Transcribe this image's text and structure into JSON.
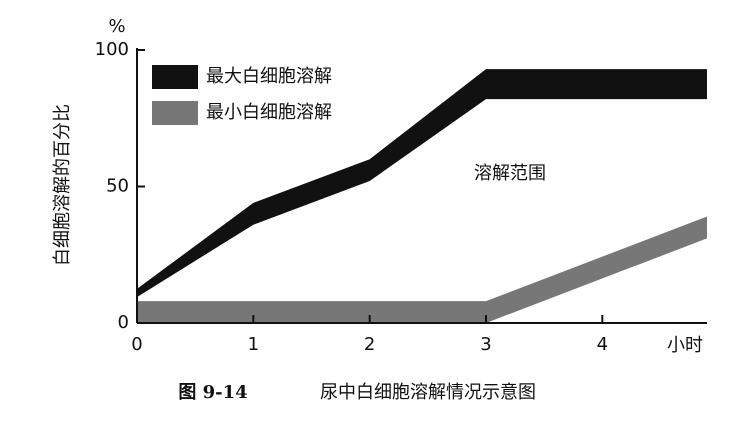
{
  "chart_data": {
    "type": "band",
    "y_label": "白细胞溶解的百分比",
    "y_unit": "%",
    "x_unit": "小时",
    "annotation": "溶解范围",
    "caption_number": "图 9-14",
    "caption": "尿中白细胞溶解情况示意图",
    "xlim": [
      0,
      4.9
    ],
    "xticks": [
      0,
      1,
      2,
      3,
      4
    ],
    "ylim": [
      0,
      100
    ],
    "yticks": [
      0,
      50,
      100
    ],
    "series": [
      {
        "name": "最大白细胞溶解",
        "color": "#111111",
        "x": [
          0,
          1,
          2,
          3,
          4.9
        ],
        "high": [
          12.5,
          44,
          60,
          93,
          93
        ],
        "low": [
          9.5,
          36,
          52,
          82,
          82
        ]
      },
      {
        "name": "最小白细胞溶解",
        "color": "#777777",
        "x": [
          0,
          3,
          4.9
        ],
        "high": [
          8,
          8,
          39
        ],
        "low": [
          0,
          0,
          31
        ]
      }
    ]
  }
}
